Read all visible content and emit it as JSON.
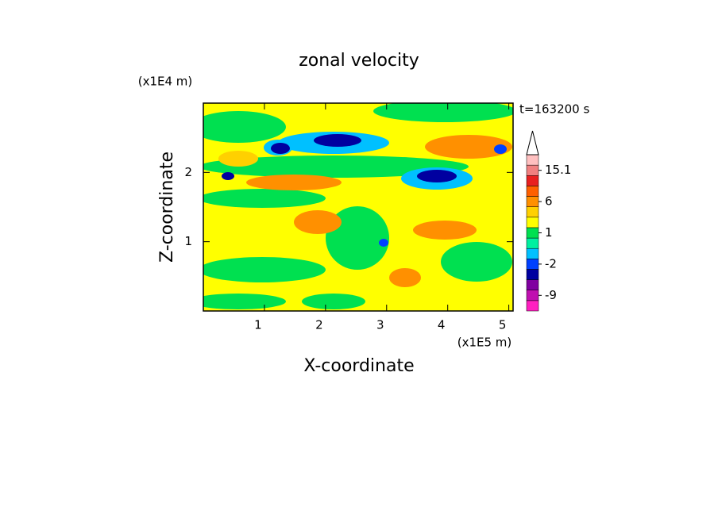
{
  "chart_data": {
    "type": "contour",
    "title": "zonal velocity",
    "y_unit_label": "(x1E4 m)",
    "x_unit_label": "(x1E5 m)",
    "time_label": "t=163200 s",
    "xlabel": "X-coordinate",
    "ylabel": "Z-coordinate",
    "xlim": [
      0,
      5.07
    ],
    "xticks": [
      1,
      2,
      3,
      4,
      5
    ],
    "ylim": [
      0,
      3
    ],
    "yticks": [
      1,
      2
    ],
    "colorbar": {
      "levels": [
        -15,
        -12,
        -9,
        -6,
        -3,
        -2,
        -1,
        0,
        1,
        2,
        4,
        6,
        9,
        12,
        15.1
      ],
      "colors": [
        "#ff20c0",
        "#c010b0",
        "#8000a0",
        "#0000a0",
        "#0040ff",
        "#00c0ff",
        "#00f0a0",
        "#00e050",
        "#ffff00",
        "#ffd000",
        "#ff9000",
        "#ff6000",
        "#e82020",
        "#f08080",
        "#ffc0c0"
      ],
      "extend_color": "#ffffff",
      "ticks": [
        -9,
        -2,
        1,
        6,
        15.1
      ]
    }
  }
}
